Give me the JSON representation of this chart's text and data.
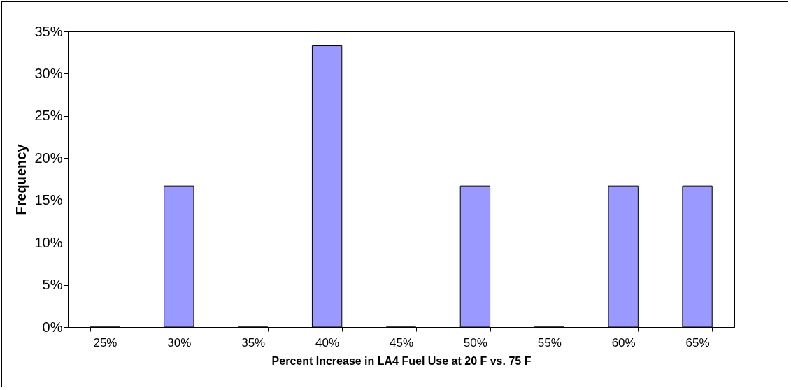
{
  "chart_data": {
    "type": "bar",
    "xlabel": "Percent Increase in LA4 Fuel Use at 20 F vs. 75 F",
    "ylabel": "Frequency",
    "categories": [
      "25%",
      "30%",
      "35%",
      "40%",
      "45%",
      "50%",
      "55%",
      "60%",
      "65%"
    ],
    "values": [
      0,
      16.7,
      0,
      33.3,
      0,
      16.7,
      0,
      16.7,
      16.7
    ],
    "color": "#9999ff",
    "ylim": [
      0,
      35
    ],
    "yticks": [
      {
        "value": 0,
        "label": "0%"
      },
      {
        "value": 5,
        "label": "5%"
      },
      {
        "value": 10,
        "label": "10%"
      },
      {
        "value": 15,
        "label": "15%"
      },
      {
        "value": 20,
        "label": "20%"
      },
      {
        "value": 25,
        "label": "25%"
      },
      {
        "value": 30,
        "label": "30%"
      },
      {
        "value": 35,
        "label": "35%"
      }
    ]
  }
}
